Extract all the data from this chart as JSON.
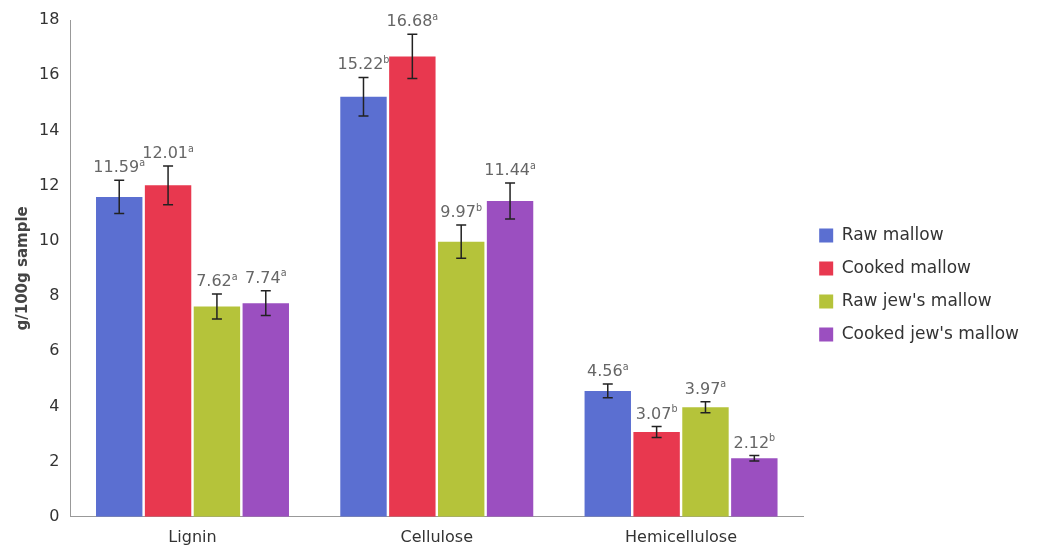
{
  "chart_data": {
    "type": "bar",
    "ylabel": "g/100g sample",
    "categories": [
      "Lignin",
      "Cellulose",
      "Hemicellulose"
    ],
    "series": [
      {
        "name": "Raw mallow",
        "color": "#5b6fd1",
        "values": [
          11.59,
          15.22,
          4.56
        ],
        "errors": [
          0.6,
          0.7,
          0.25
        ],
        "value_labels": [
          "11.59$^{a}$",
          "15.22$^{b}$",
          "4.56$^{a}$"
        ]
      },
      {
        "name": "Cooked mallow",
        "color": "#e8384f",
        "values": [
          12.01,
          16.68,
          3.07
        ],
        "errors": [
          0.7,
          0.8,
          0.2
        ],
        "value_labels": [
          "12.01$^{a}$",
          "16.68$^{a}$",
          "3.07$^{b}$"
        ]
      },
      {
        "name": "Raw jew's mallow",
        "color": "#b5c33a",
        "values": [
          7.62,
          9.97,
          3.97
        ],
        "errors": [
          0.45,
          0.6,
          0.2
        ],
        "value_labels": [
          "7.62$^{a}$",
          "9.97$^{b}$",
          "3.97$^{a}$"
        ]
      },
      {
        "name": "Cooked jew's mallow",
        "color": "#9b4fc0",
        "values": [
          7.74,
          11.44,
          2.12
        ],
        "errors": [
          0.45,
          0.65,
          0.1
        ],
        "value_labels": [
          "7.74$^{a}$",
          "11.44$^{a}$",
          "2.12$^{b}$"
        ]
      }
    ],
    "ylim": [
      0,
      18
    ],
    "yticks": [
      0,
      2,
      4,
      6,
      8,
      10,
      12,
      14,
      16,
      18
    ],
    "grid": false,
    "legend": "right"
  }
}
